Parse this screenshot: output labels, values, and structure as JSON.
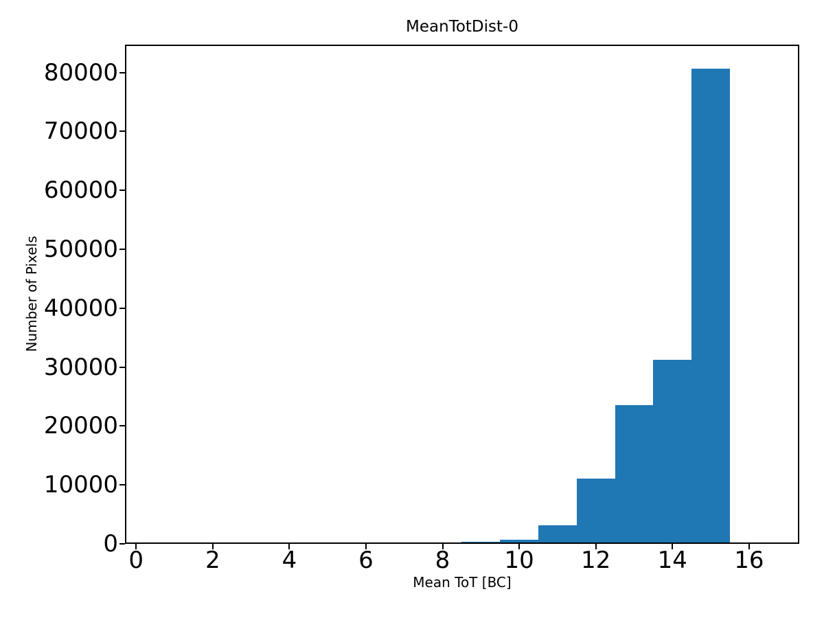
{
  "chart_data": {
    "type": "bar",
    "subtype": "histogram",
    "title": "MeanTotDist-0",
    "xlabel": "Mean ToT [BC]",
    "ylabel": "Number of Pixels",
    "bar_color": "#1f77b4",
    "bin_edges": [
      8.5,
      9.5,
      10.5,
      11.5,
      12.5,
      13.5,
      14.5,
      15.5
    ],
    "bin_centers": [
      9,
      10,
      11,
      12,
      13,
      14,
      15
    ],
    "counts": [
      300,
      650,
      3200,
      11100,
      23600,
      31200,
      80700
    ],
    "xlim": [
      -0.29,
      17.31
    ],
    "ylim": [
      0,
      84735
    ],
    "xticks": [
      0,
      2,
      4,
      6,
      8,
      10,
      12,
      14,
      16
    ],
    "yticks": [
      0,
      10000,
      20000,
      30000,
      40000,
      50000,
      60000,
      70000,
      80000
    ],
    "grid": false,
    "legend": null,
    "axis_color": "#000000",
    "background_color": "#ffffff"
  }
}
